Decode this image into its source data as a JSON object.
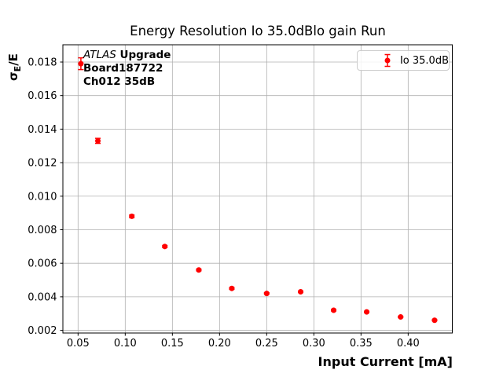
{
  "chart_data": {
    "type": "scatter",
    "title": "Energy Resolution Io 35.0dBlo gain Run",
    "xlabel": "Input Current [mA]",
    "ylabel": "σE/E",
    "ylabel_parts": {
      "sigma": "σ",
      "sub": "E",
      "rest": "/E"
    },
    "legend": {
      "label": "Io 35.0dB",
      "position": "upper right"
    },
    "series": [
      {
        "name": "Io 35.0dB",
        "color": "#ff0000",
        "marker": "circle-with-errorbar",
        "x": [
          0.053,
          0.071,
          0.107,
          0.142,
          0.178,
          0.213,
          0.25,
          0.286,
          0.321,
          0.356,
          0.392,
          0.428
        ],
        "y": [
          0.0179,
          0.0133,
          0.0088,
          0.007,
          0.0056,
          0.0045,
          0.0042,
          0.0043,
          0.0032,
          0.0031,
          0.0028,
          0.0026
        ],
        "yerr": [
          0.00035,
          0.00015,
          8e-05,
          6e-05,
          5e-05,
          5e-05,
          4e-05,
          4e-05,
          4e-05,
          3e-05,
          3e-05,
          3e-05
        ]
      }
    ],
    "xlim": [
      0.0339,
      0.4468
    ],
    "ylim": [
      0.00184,
      0.01903
    ],
    "xticks": [
      0.05,
      0.1,
      0.15,
      0.2,
      0.25,
      0.3,
      0.35,
      0.4
    ],
    "xtick_labels": [
      "0.05",
      "0.10",
      "0.15",
      "0.20",
      "0.25",
      "0.30",
      "0.35",
      "0.40"
    ],
    "yticks": [
      0.002,
      0.004,
      0.006,
      0.008,
      0.01,
      0.012,
      0.014,
      0.016,
      0.018
    ],
    "ytick_labels": [
      "0.002",
      "0.004",
      "0.006",
      "0.008",
      "0.010",
      "0.012",
      "0.014",
      "0.016",
      "0.018"
    ],
    "grid": true,
    "grid_color": "#b0b0b0",
    "axis_color": "#000000",
    "background": "#ffffff"
  },
  "annotation": {
    "line1_italic": "ATLAS",
    "line1_bold": "Upgrade",
    "line2": "Board187722",
    "line3": "Ch012 35dB"
  }
}
